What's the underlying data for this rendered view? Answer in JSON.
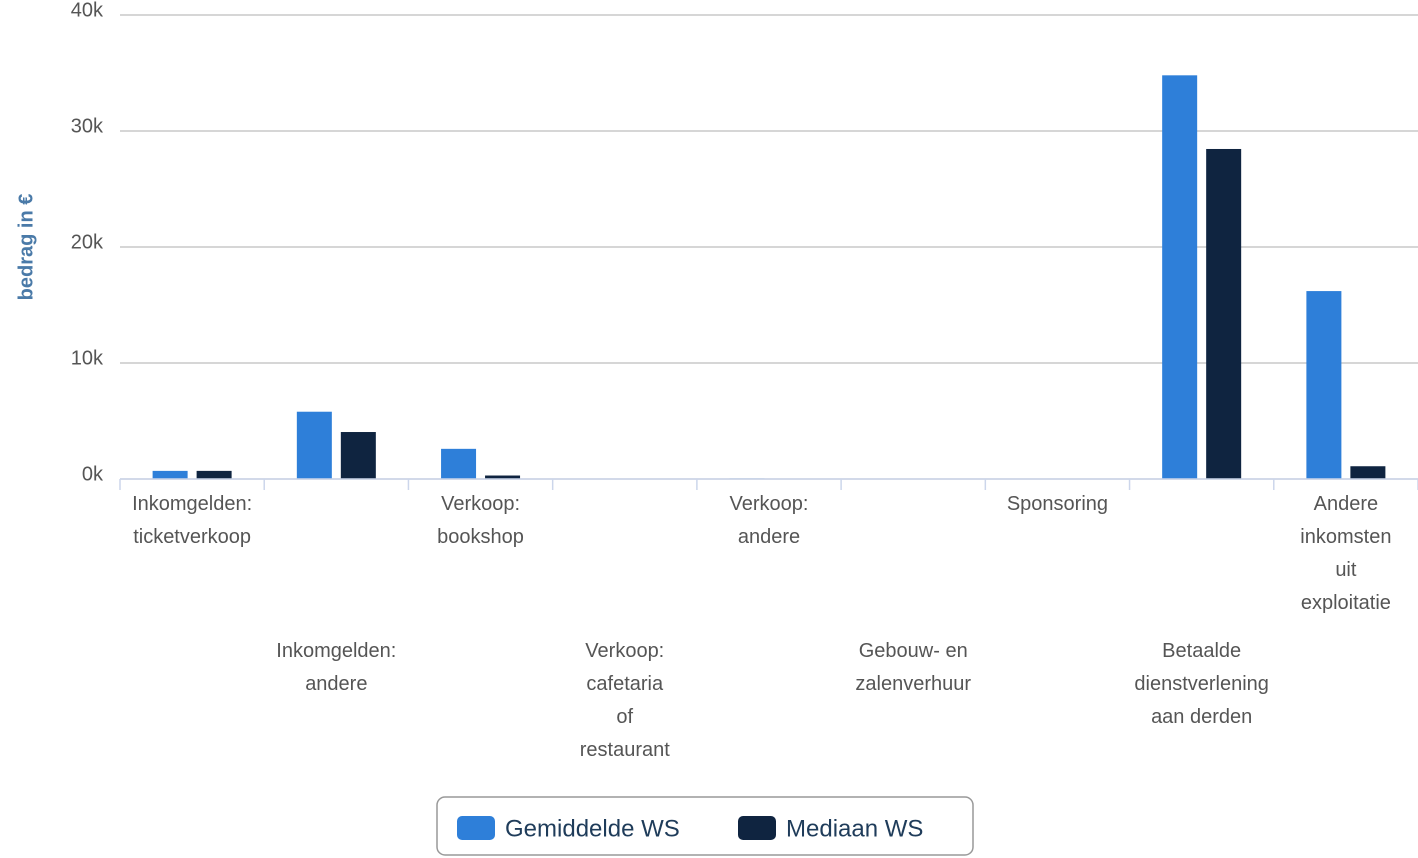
{
  "chart_data": {
    "type": "bar",
    "y_label": "bedrag in €",
    "categories": [
      "Inkomgelden: ticketverkoop",
      "Inkomgelden: andere",
      "Verkoop: bookshop",
      "Verkoop: cafetaria of restaurant",
      "Verkoop: andere",
      "Gebouw- en zalenverhuur",
      "Sponsoring",
      "Betaalde dienstverlening aan derden",
      "Andere inkomsten uit exploitatie"
    ],
    "series": [
      {
        "name": "Gemiddelde WS",
        "color": "#2e7fd9",
        "values": [
          700,
          5800,
          2600,
          0,
          50,
          0,
          0,
          34800,
          16200
        ]
      },
      {
        "name": "Mediaan WS",
        "color": "#0f2440",
        "values": [
          700,
          4050,
          300,
          0,
          20,
          0,
          0,
          28450,
          1100
        ]
      }
    ],
    "ylim": [
      0,
      40000
    ],
    "yticks": [
      {
        "value": 0,
        "label": "0k"
      },
      {
        "value": 10000,
        "label": "10k"
      },
      {
        "value": 20000,
        "label": "20k"
      },
      {
        "value": 30000,
        "label": "30k"
      },
      {
        "value": 40000,
        "label": "40k"
      }
    ],
    "grid": true,
    "legend": "bottom"
  }
}
